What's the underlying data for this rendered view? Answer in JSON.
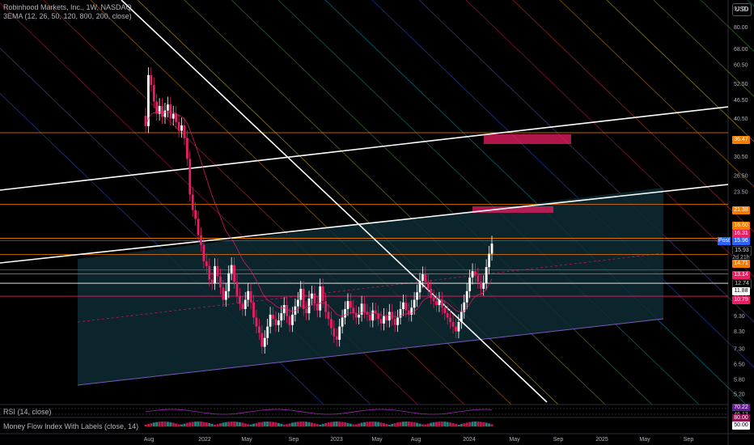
{
  "header": {
    "symbol_line": "Robinhood Markets, Inc., 1W, NASDAQ",
    "indicator_line": "3EMA (12, 26, 50, 120, 800, 200, close)",
    "currency_button": "USD"
  },
  "rsi_pane": {
    "label": "RSI (14, close)",
    "values": [
      "70.22",
      "46.13"
    ]
  },
  "mfi_pane": {
    "label": "Money Flow Index With Labels (close, 14)",
    "values": [
      "80.00",
      "50.00"
    ]
  },
  "price_tags": {
    "last_label": "Post",
    "last_value": "15.96",
    "close_value": "15.93",
    "countdown": "2d 21h",
    "level_36": "36.47",
    "level_21": "21.38",
    "level_16a": "16.60",
    "level_16b": "16.31",
    "level_14": "14.71",
    "level_13": "13.14",
    "level_12a": "12.74",
    "level_12b": "11.88",
    "level_10": "10.79"
  },
  "colors": {
    "background": "#000000",
    "up_candle": "#ffffff",
    "down_candle": "#e91e63",
    "orange_level": "#f57c00",
    "channel_fill": "#0e2a33"
  },
  "chart_data": {
    "type": "candlestick",
    "x_tick_labels": [
      "Aug",
      "2022",
      "May",
      "Sep",
      "2023",
      "May",
      "Aug",
      "2024",
      "May",
      "Sep",
      "2025",
      "May",
      "Sep"
    ],
    "y_tick_labels": [
      "92.00",
      "80.00",
      "68.00",
      "60.50",
      "52.50",
      "46.50",
      "40.50",
      "34.50",
      "30.50",
      "26.50",
      "23.50",
      "20.50",
      "18.50",
      "12.00",
      "11.00",
      "9.30",
      "8.30",
      "7.30",
      "6.50",
      "5.80",
      "5.20"
    ],
    "y_scale": "log",
    "ylim": [
      4.9,
      98
    ],
    "horizontal_levels": [
      36.47,
      21.38,
      16.6,
      16.31,
      14.71,
      13.14,
      12.74,
      11.88,
      10.79
    ],
    "last_price": 15.96,
    "weekly_closes": [
      38.3,
      56.0,
      52.0,
      46.0,
      42.0,
      44.5,
      41.0,
      43.0,
      45.0,
      40.5,
      42.0,
      39.5,
      37.0,
      38.5,
      35.0,
      30.0,
      23.0,
      20.5,
      19.2,
      17.0,
      15.8,
      14.0,
      13.5,
      12.2,
      11.9,
      13.5,
      12.5,
      11.5,
      10.5,
      11.2,
      12.8,
      13.6,
      12.0,
      10.8,
      10.2,
      9.8,
      10.5,
      11.2,
      10.3,
      9.2,
      8.6,
      8.2,
      7.4,
      7.9,
      8.6,
      9.4,
      9.1,
      8.7,
      9.0,
      9.5,
      10.1,
      9.3,
      8.7,
      9.4,
      10.0,
      10.5,
      11.4,
      9.8,
      9.5,
      10.6,
      11.0,
      10.2,
      9.7,
      11.6,
      10.4,
      9.6,
      9.1,
      8.5,
      8.0,
      7.8,
      8.6,
      9.2,
      9.8,
      10.4,
      9.9,
      9.5,
      9.2,
      9.4,
      10.2,
      9.6,
      9.4,
      9.0,
      9.7,
      9.5,
      9.1,
      8.8,
      9.3,
      9.0,
      9.6,
      9.1,
      8.7,
      9.2,
      9.8,
      10.3,
      9.7,
      9.4,
      9.9,
      10.5,
      11.1,
      12.1,
      12.7,
      12.0,
      11.4,
      10.7,
      10.4,
      10.1,
      10.5,
      9.9,
      9.5,
      9.2,
      8.9,
      8.6,
      8.3,
      8.9,
      9.6,
      10.3,
      11.2,
      12.4,
      13.0,
      12.6,
      12.0,
      11.4,
      11.9,
      13.4,
      14.8,
      15.96
    ]
  }
}
